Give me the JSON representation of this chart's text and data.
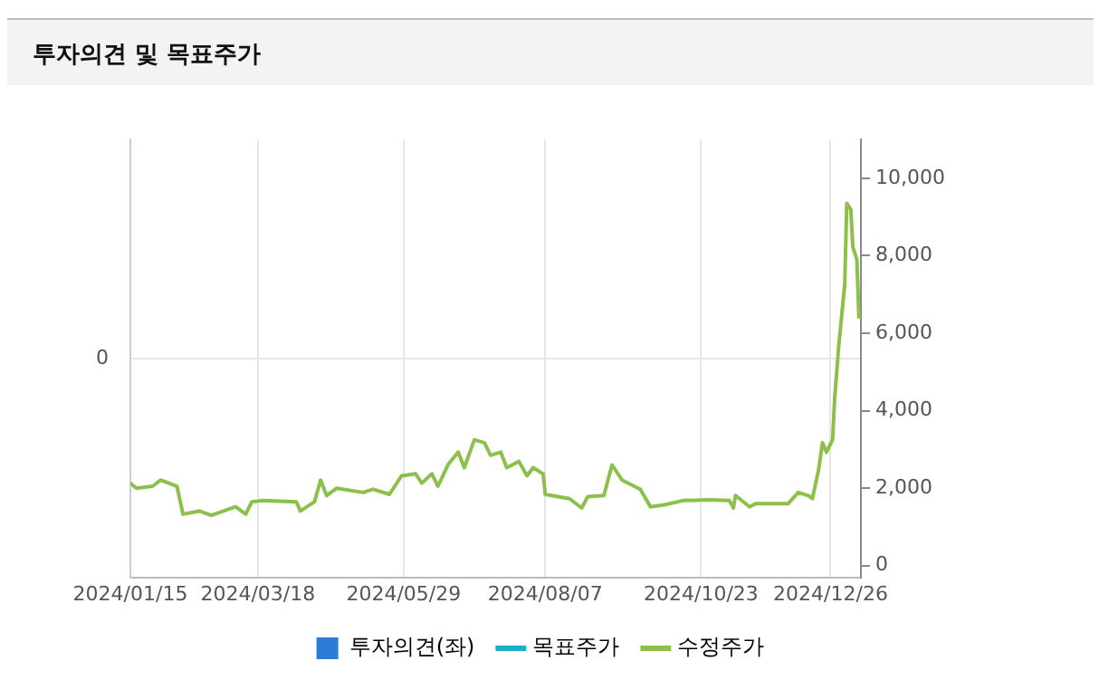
{
  "chart_data": {
    "type": "line",
    "title": "투자의견 및 목표주가",
    "xlim": [
      "2024-01-15",
      "2025-01-10"
    ],
    "xticks": [
      {
        "value": "2024-01-15",
        "label": "2024/01/15"
      },
      {
        "value": "2024-03-18",
        "label": "2024/03/18"
      },
      {
        "value": "2024-05-29",
        "label": "2024/05/29"
      },
      {
        "value": "2024-08-07",
        "label": "2024/08/07"
      },
      {
        "value": "2024-10-23",
        "label": "2024/10/23"
      },
      {
        "value": "2024-12-26",
        "label": "2024/12/26"
      }
    ],
    "annotations": [
      "0"
    ],
    "y2lim": [
      -300,
      11000
    ],
    "y2ticks": [
      0,
      {
        "value": 2000,
        "label": "2,000"
      },
      {
        "value": 4000,
        "label": "4,000"
      },
      {
        "value": 6000,
        "label": "6,000"
      },
      {
        "value": 8000,
        "label": "8,000"
      },
      {
        "value": 10000,
        "label": "10,000"
      }
    ],
    "grid": true,
    "legend": "bottom",
    "marker": "none",
    "series": [
      {
        "name": "투자의견(좌)",
        "type": "bar",
        "color": "#2b7bd8"
      },
      {
        "name": "목표주가",
        "type": "line",
        "axis": "y2",
        "color": "#1ab0c8"
      },
      {
        "name": "수정주가",
        "axis": "y2",
        "color": "#8cc04a",
        "x": [
          "2024-01-15",
          "2024-01-18",
          "2024-01-26",
          "2024-01-30",
          "2024-02-07",
          "2024-02-10",
          "2024-02-18",
          "2024-02-24",
          "2024-03-07",
          "2024-03-12",
          "2024-03-15",
          "2024-03-20",
          "2024-04-06",
          "2024-04-08",
          "2024-04-15",
          "2024-04-18",
          "2024-04-21",
          "2024-04-26",
          "2024-05-09",
          "2024-05-14",
          "2024-05-22",
          "2024-05-28",
          "2024-06-04",
          "2024-06-07",
          "2024-06-12",
          "2024-06-15",
          "2024-06-20",
          "2024-06-25",
          "2024-06-28",
          "2024-07-03",
          "2024-07-08",
          "2024-07-11",
          "2024-07-16",
          "2024-07-19",
          "2024-07-25",
          "2024-07-29",
          "2024-08-01",
          "2024-08-06",
          "2024-08-07",
          "2024-08-19",
          "2024-08-25",
          "2024-08-28",
          "2024-09-05",
          "2024-09-09",
          "2024-09-14",
          "2024-09-23",
          "2024-09-28",
          "2024-10-05",
          "2024-10-14",
          "2024-10-27",
          "2024-11-06",
          "2024-11-08",
          "2024-11-09",
          "2024-11-16",
          "2024-11-19",
          "2024-12-05",
          "2024-12-10",
          "2024-12-15",
          "2024-12-17",
          "2024-12-20",
          "2024-12-22",
          "2024-12-24",
          "2024-12-27",
          "2024-12-28",
          "2024-12-30",
          "2025-01-02",
          "2025-01-03",
          "2025-01-05",
          "2025-01-06",
          "2025-01-08",
          "2025-01-09"
        ],
        "values": [
          2130,
          2000,
          2050,
          2210,
          2050,
          1330,
          1410,
          1300,
          1520,
          1330,
          1650,
          1680,
          1650,
          1410,
          1650,
          2210,
          1810,
          2000,
          1890,
          1970,
          1840,
          2320,
          2370,
          2130,
          2370,
          2050,
          2610,
          2930,
          2530,
          3250,
          3170,
          2850,
          2930,
          2530,
          2690,
          2320,
          2530,
          2370,
          1840,
          1730,
          1490,
          1780,
          1810,
          2600,
          2210,
          1970,
          1520,
          1570,
          1680,
          1700,
          1680,
          1490,
          1810,
          1520,
          1600,
          1600,
          1890,
          1810,
          1730,
          2450,
          3170,
          2930,
          3250,
          4300,
          5660,
          7260,
          9350,
          9190,
          8220,
          7900,
          6380
        ]
      }
    ]
  }
}
